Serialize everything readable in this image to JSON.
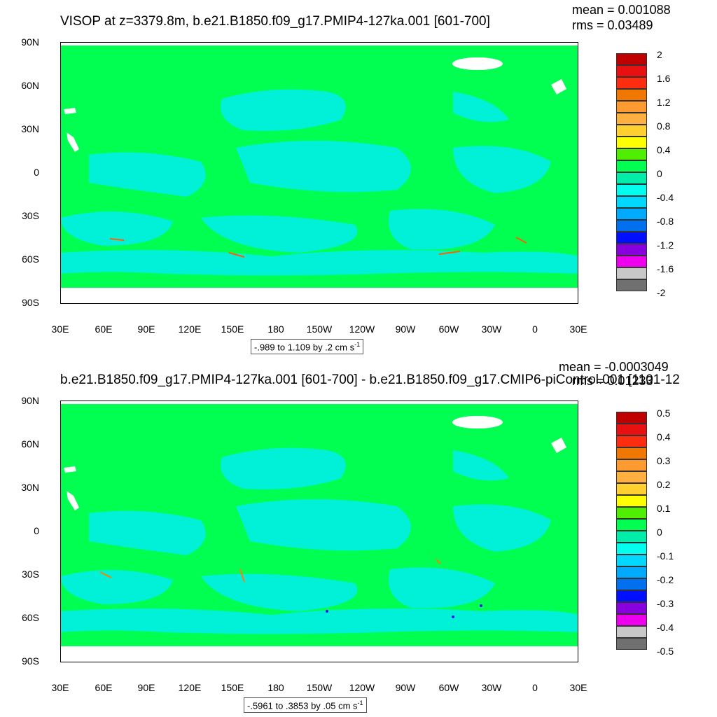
{
  "panels": [
    {
      "title": "VISOP at z=3379.8m, b.e21.B1850.f09_g17.PMIP4-127ka.001 [601-700]",
      "mean": "mean = 0.001088",
      "rms": "rms = 0.03489",
      "range_label": "-.989 to 1.109 by .2 cm s",
      "range_exp": "-1",
      "colorbar_labels": [
        "2",
        "1.6",
        "1.2",
        "0.8",
        "0.4",
        "0",
        "-0.4",
        "-0.8",
        "-1.2",
        "-1.6",
        "-2"
      ]
    },
    {
      "title": "b.e21.B1850.f09_g17.PMIP4-127ka.001 [601-700] - b.e21.B1850.f09_g17.CMIP6-piControl.001 [1101-12",
      "mean": "mean = -0.0003049",
      "rms": "rms = 0.01233",
      "range_label": "-.5961 to .3853 by .05 cm s",
      "range_exp": "-1",
      "colorbar_labels": [
        "0.5",
        "0.4",
        "0.3",
        "0.2",
        "0.1",
        "0",
        "-0.1",
        "-0.2",
        "-0.3",
        "-0.4",
        "-0.5"
      ]
    }
  ],
  "lat_labels": [
    "90N",
    "60N",
    "30N",
    "0",
    "30S",
    "60S",
    "90S"
  ],
  "lon_labels": [
    "30E",
    "60E",
    "90E",
    "120E",
    "150E",
    "180",
    "150W",
    "120W",
    "90W",
    "60W",
    "30W",
    "0",
    "30E"
  ],
  "colorbar_colors": [
    "#c00000",
    "#e81010",
    "#ff2d10",
    "#f07800",
    "#ff9a30",
    "#ffb040",
    "#ffd030",
    "#ffff00",
    "#50ee00",
    "#00ff50",
    "#00eeaa",
    "#00ffee",
    "#00d8ff",
    "#00aaff",
    "#0070ee",
    "#0010ff",
    "#8800dd",
    "#ee00ee",
    "#c8c8c8",
    "#707070"
  ],
  "field_colors": {
    "land_ocean_base": "#00ff50",
    "negative_patch": "#00f0d8"
  }
}
